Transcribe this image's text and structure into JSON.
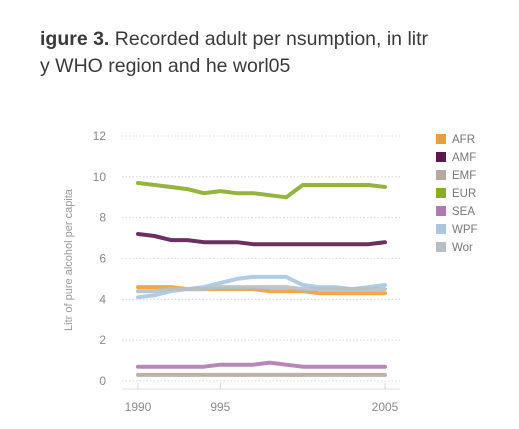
{
  "figure": {
    "label": "igure 3.",
    "title_line1": " Recorded adult per nsumption, in litr",
    "title_line2": "y WHO region and he worl05"
  },
  "chart_data": {
    "type": "line",
    "ylabel": "Litr of pure alcohol per capita",
    "ylim": [
      0,
      12
    ],
    "y_ticks": [
      0,
      2,
      4,
      6,
      8,
      10,
      12
    ],
    "x_tick_labels": [
      "1990",
      "995",
      "2005"
    ],
    "x": [
      1990,
      1991,
      1992,
      1993,
      1994,
      1995,
      1996,
      1997,
      1998,
      1999,
      2000,
      2001,
      2002,
      2003,
      2004,
      2005
    ],
    "grid": true,
    "legend_position": "right",
    "series": [
      {
        "name": "AFR",
        "color": "#e8a13a",
        "values": [
          4.6,
          4.6,
          4.6,
          4.5,
          4.5,
          4.5,
          4.5,
          4.5,
          4.4,
          4.4,
          4.4,
          4.3,
          4.3,
          4.3,
          4.3,
          4.3
        ]
      },
      {
        "name": "AMF",
        "color": "#5a1a4e",
        "values": [
          7.2,
          7.1,
          6.9,
          6.9,
          6.8,
          6.8,
          6.8,
          6.7,
          6.7,
          6.7,
          6.7,
          6.7,
          6.7,
          6.7,
          6.7,
          6.8
        ]
      },
      {
        "name": "EMF",
        "color": "#b5aaa0",
        "values": [
          0.3,
          0.3,
          0.3,
          0.3,
          0.3,
          0.3,
          0.3,
          0.3,
          0.3,
          0.3,
          0.3,
          0.3,
          0.3,
          0.3,
          0.3,
          0.3
        ]
      },
      {
        "name": "EUR",
        "color": "#8aab2a",
        "values": [
          9.7,
          9.6,
          9.5,
          9.4,
          9.2,
          9.3,
          9.2,
          9.2,
          9.1,
          9.0,
          9.6,
          9.6,
          9.6,
          9.6,
          9.6,
          9.5
        ]
      },
      {
        "name": "SEA",
        "color": "#b07ab0",
        "values": [
          0.7,
          0.7,
          0.7,
          0.7,
          0.7,
          0.8,
          0.8,
          0.8,
          0.9,
          0.8,
          0.7,
          0.7,
          0.7,
          0.7,
          0.7,
          0.7
        ]
      },
      {
        "name": "WPF",
        "color": "#a9c8e0",
        "values": [
          4.1,
          4.2,
          4.4,
          4.5,
          4.6,
          4.8,
          5.0,
          5.1,
          5.1,
          5.1,
          4.7,
          4.6,
          4.6,
          4.5,
          4.6,
          4.7
        ]
      },
      {
        "name": "Wor",
        "color": "#b8bfc4",
        "values": [
          4.4,
          4.4,
          4.5,
          4.5,
          4.5,
          4.6,
          4.6,
          4.6,
          4.6,
          4.6,
          4.5,
          4.5,
          4.5,
          4.5,
          4.5,
          4.5
        ]
      }
    ]
  }
}
